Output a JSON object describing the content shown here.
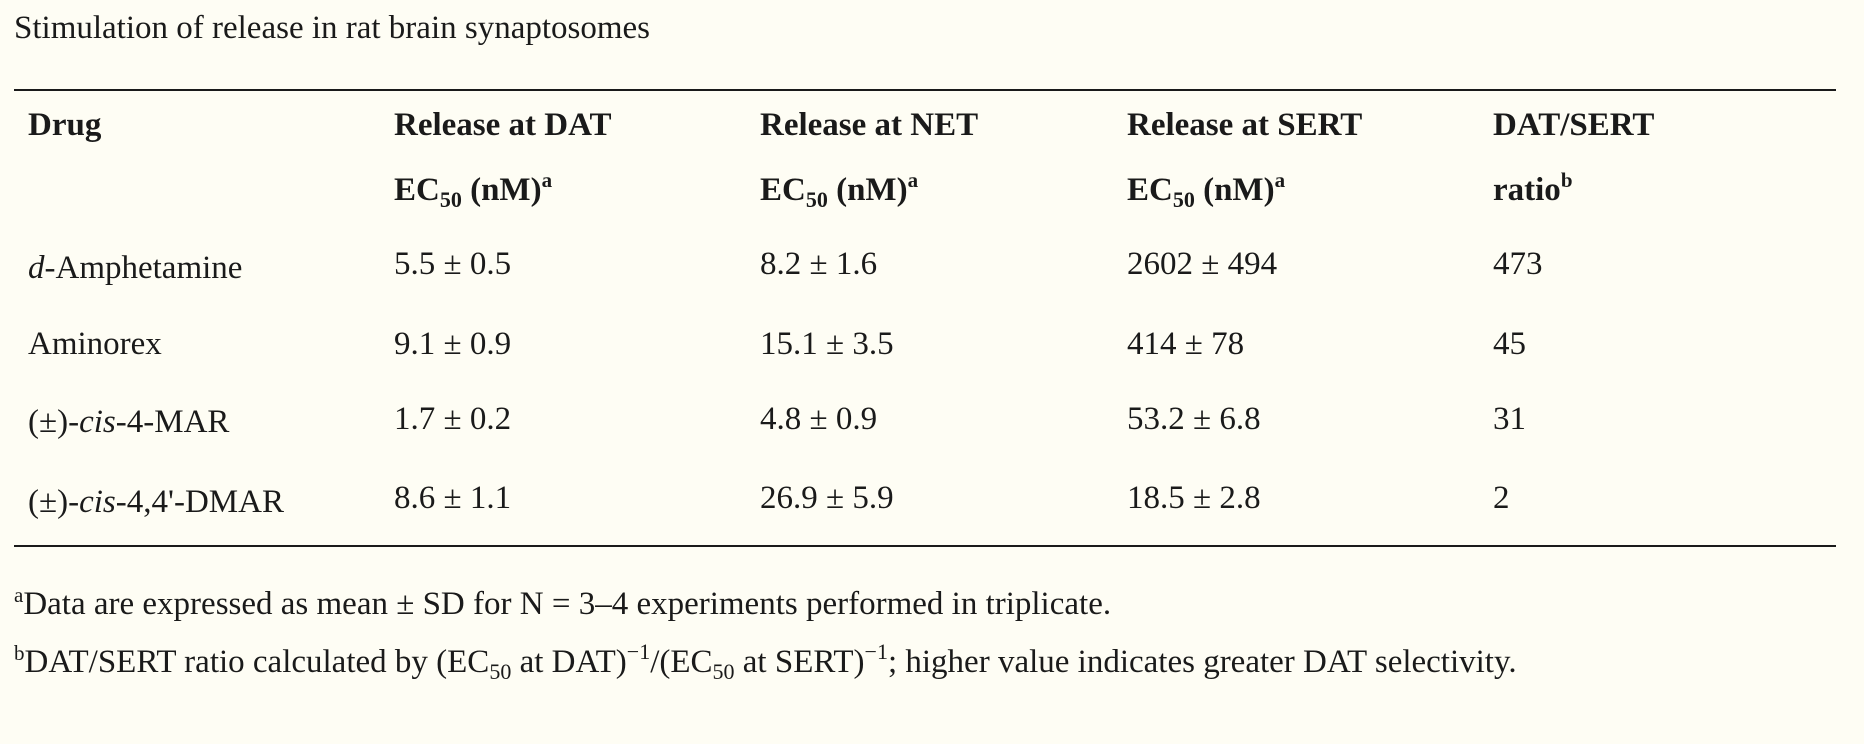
{
  "caption": "Stimulation of release in rat brain synaptosomes",
  "columns": [
    {
      "line1": "Drug",
      "line2": "",
      "sub": "",
      "suffix": "",
      "sup": ""
    },
    {
      "line1": "Release at DAT",
      "line2": "EC",
      "sub": "50",
      "suffix": " (nM)",
      "sup": "a"
    },
    {
      "line1": "Release at NET",
      "line2": "EC",
      "sub": "50",
      "suffix": " (nM)",
      "sup": "a"
    },
    {
      "line1": "Release at SERT",
      "line2": "EC",
      "sub": "50",
      "suffix": " (nM)",
      "sup": "a"
    },
    {
      "line1": "DAT/SERT",
      "line2": "ratio",
      "sub": "",
      "suffix": "",
      "sup": "b"
    }
  ],
  "rows": [
    {
      "drug_prefix": "",
      "drug_italic": "d",
      "drug_rest": "-Amphetamine",
      "dat": "5.5 ± 0.5",
      "net": "8.2 ± 1.6",
      "sert": "2602 ± 494",
      "ratio": "473"
    },
    {
      "drug_prefix": "Aminorex",
      "drug_italic": "",
      "drug_rest": "",
      "dat": "9.1 ± 0.9",
      "net": "15.1 ± 3.5",
      "sert": "414 ± 78",
      "ratio": "45"
    },
    {
      "drug_prefix": "(±)-",
      "drug_italic": "cis",
      "drug_rest": "-4-MAR",
      "dat": "1.7 ± 0.2",
      "net": "4.8 ± 0.9",
      "sert": "53.2 ± 6.8",
      "ratio": "31"
    },
    {
      "drug_prefix": "(±)-",
      "drug_italic": "cis",
      "drug_rest": "-4,4'-DMAR",
      "dat": "8.6 ± 1.1",
      "net": "26.9 ± 5.9",
      "sert": "18.5 ± 2.8",
      "ratio": "2"
    }
  ],
  "footnotes": {
    "a": {
      "mark": "a",
      "text": "Data are expressed as mean ± SD for N = 3–4 experiments performed in triplicate."
    },
    "b": {
      "mark": "b",
      "part1": "DAT/SERT ratio calculated by (EC",
      "sub1": "50",
      "part2": " at DAT)",
      "exp1": "−1",
      "part3": "/(EC",
      "sub2": "50",
      "part4": " at SERT)",
      "exp2": "−1",
      "part5": "; higher value indicates greater DAT selectivity."
    }
  }
}
